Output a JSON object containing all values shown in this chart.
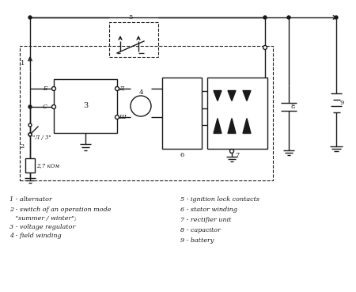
{
  "bg_color": "#ffffff",
  "line_color": "#1a1a1a",
  "fig_w": 4.5,
  "fig_h": 3.69,
  "dpi": 100,
  "legend_left": [
    "1 - alternator",
    "2 - switch of an operation mode",
    "   \"summer / winter\";",
    "3 - voltage regulator",
    "4 - field winding"
  ],
  "legend_right": [
    "5 - ignition lock contacts",
    "6 - stator winding",
    "7 - rectifier unit",
    "8 - capacitor",
    "9 - battery"
  ]
}
